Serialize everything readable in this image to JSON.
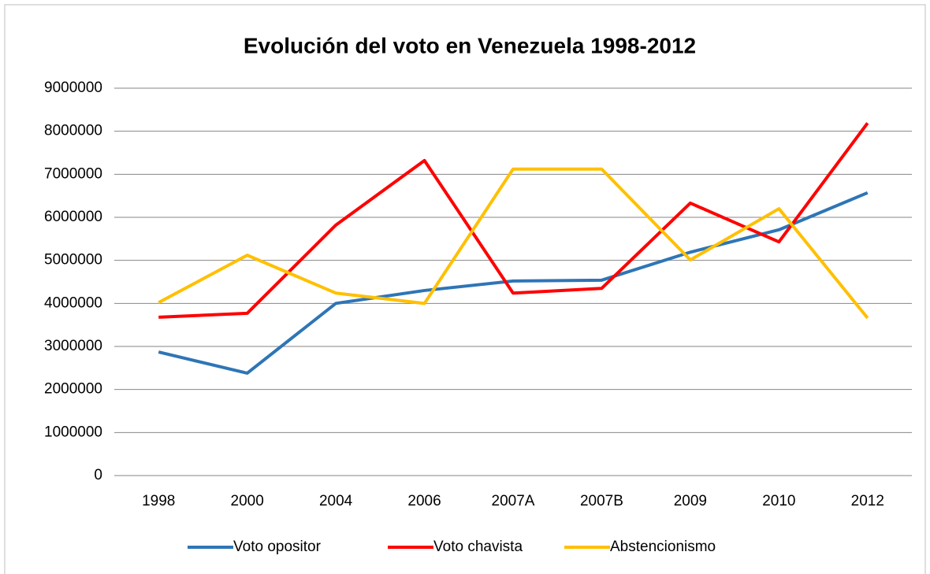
{
  "chart_data": {
    "type": "line",
    "title": "Evolución del voto en Venezuela 1998-2012",
    "categories": [
      "1998",
      "2000",
      "2004",
      "2006",
      "2007A",
      "2007B",
      "2009",
      "2010",
      "2012"
    ],
    "series": [
      {
        "name": "Voto opositor",
        "color": "#2e75b6",
        "values": [
          2870000,
          2380000,
          4000000,
          4300000,
          4520000,
          4540000,
          5190000,
          5710000,
          6570000
        ]
      },
      {
        "name": "Voto chavista",
        "color": "#ff0000",
        "values": [
          3680000,
          3770000,
          5820000,
          7320000,
          4240000,
          4350000,
          6330000,
          5430000,
          8190000
        ]
      },
      {
        "name": "Abstencionismo",
        "color": "#ffc000",
        "values": [
          4020000,
          5120000,
          4240000,
          4000000,
          7120000,
          7120000,
          5010000,
          6200000,
          3660000
        ]
      }
    ],
    "ylim": [
      0,
      9000000
    ],
    "yticks": [
      0,
      1000000,
      2000000,
      3000000,
      4000000,
      5000000,
      6000000,
      7000000,
      8000000,
      9000000
    ],
    "grid": true,
    "legend": "bottom"
  }
}
